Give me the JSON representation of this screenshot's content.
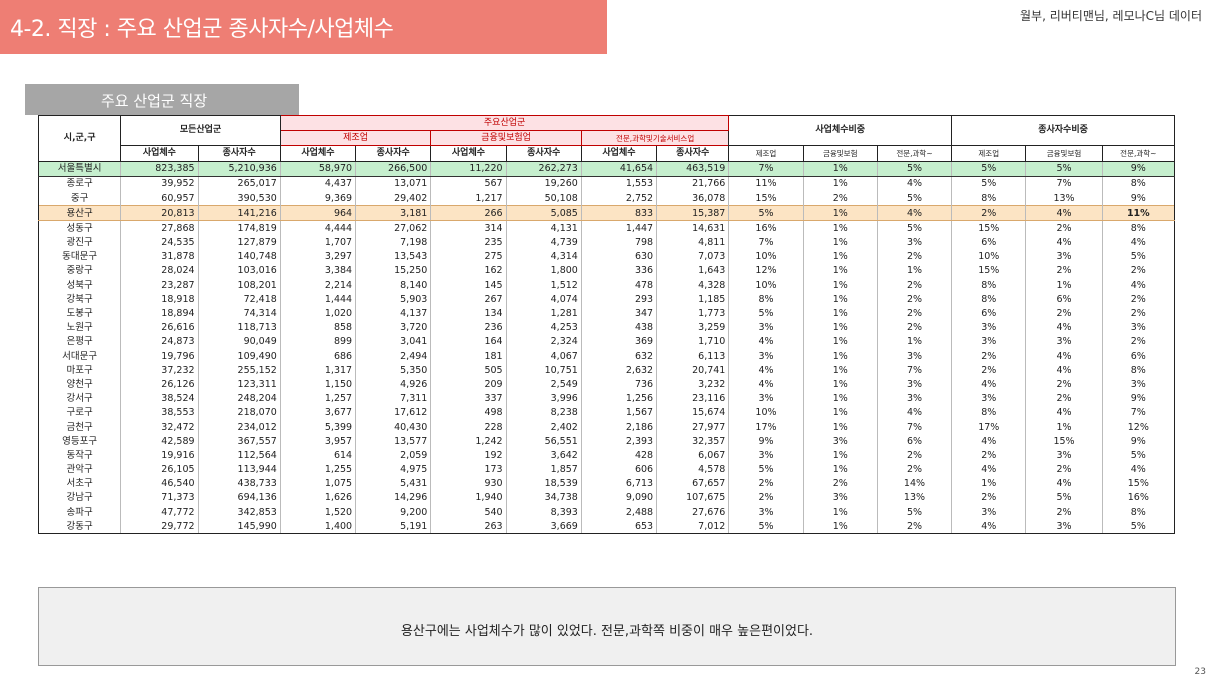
{
  "title": "4-2. 직장 : 주요 산업군 종사자수/사업체수",
  "credit": "월부, 리버티맨님, 레모나C님 데이터",
  "section_tab": "주요 산업군 직장",
  "table": {
    "header": {
      "region": "시,군,구",
      "all_industry": "모든산업군",
      "major_industry": "주요산업군",
      "manufacturing": "제조업",
      "finance": "금융및보험업",
      "professional": "전문,과학및기술서비스업",
      "biz_ratio": "사업체수비중",
      "emp_ratio": "종사자수비중",
      "biz_count": "사업체수",
      "emp_count": "종사자수",
      "r_manu": "제조업",
      "r_fin": "금융및보험",
      "r_prof": "전문,과학~"
    },
    "rows": [
      [
        "서울특별시",
        "823,385",
        "5,210,936",
        "58,970",
        "266,500",
        "11,220",
        "262,273",
        "41,654",
        "463,519",
        "7%",
        "1%",
        "5%",
        "5%",
        "5%",
        "9%"
      ],
      [
        "종로구",
        "39,952",
        "265,017",
        "4,437",
        "13,071",
        "567",
        "19,260",
        "1,553",
        "21,766",
        "11%",
        "1%",
        "4%",
        "5%",
        "7%",
        "8%"
      ],
      [
        "중구",
        "60,957",
        "390,530",
        "9,369",
        "29,402",
        "1,217",
        "50,108",
        "2,752",
        "36,078",
        "15%",
        "2%",
        "5%",
        "8%",
        "13%",
        "9%"
      ],
      [
        "용산구",
        "20,813",
        "141,216",
        "964",
        "3,181",
        "266",
        "5,085",
        "833",
        "15,387",
        "5%",
        "1%",
        "4%",
        "2%",
        "4%",
        "11%"
      ],
      [
        "성동구",
        "27,868",
        "174,819",
        "4,444",
        "27,062",
        "314",
        "4,131",
        "1,447",
        "14,631",
        "16%",
        "1%",
        "5%",
        "15%",
        "2%",
        "8%"
      ],
      [
        "광진구",
        "24,535",
        "127,879",
        "1,707",
        "7,198",
        "235",
        "4,739",
        "798",
        "4,811",
        "7%",
        "1%",
        "3%",
        "6%",
        "4%",
        "4%"
      ],
      [
        "동대문구",
        "31,878",
        "140,748",
        "3,297",
        "13,543",
        "275",
        "4,314",
        "630",
        "7,073",
        "10%",
        "1%",
        "2%",
        "10%",
        "3%",
        "5%"
      ],
      [
        "중랑구",
        "28,024",
        "103,016",
        "3,384",
        "15,250",
        "162",
        "1,800",
        "336",
        "1,643",
        "12%",
        "1%",
        "1%",
        "15%",
        "2%",
        "2%"
      ],
      [
        "성북구",
        "23,287",
        "108,201",
        "2,214",
        "8,140",
        "145",
        "1,512",
        "478",
        "4,328",
        "10%",
        "1%",
        "2%",
        "8%",
        "1%",
        "4%"
      ],
      [
        "강북구",
        "18,918",
        "72,418",
        "1,444",
        "5,903",
        "267",
        "4,074",
        "293",
        "1,185",
        "8%",
        "1%",
        "2%",
        "8%",
        "6%",
        "2%"
      ],
      [
        "도봉구",
        "18,894",
        "74,314",
        "1,020",
        "4,137",
        "134",
        "1,281",
        "347",
        "1,773",
        "5%",
        "1%",
        "2%",
        "6%",
        "2%",
        "2%"
      ],
      [
        "노원구",
        "26,616",
        "118,713",
        "858",
        "3,720",
        "236",
        "4,253",
        "438",
        "3,259",
        "3%",
        "1%",
        "2%",
        "3%",
        "4%",
        "3%"
      ],
      [
        "은평구",
        "24,873",
        "90,049",
        "899",
        "3,041",
        "164",
        "2,324",
        "369",
        "1,710",
        "4%",
        "1%",
        "1%",
        "3%",
        "3%",
        "2%"
      ],
      [
        "서대문구",
        "19,796",
        "109,490",
        "686",
        "2,494",
        "181",
        "4,067",
        "632",
        "6,113",
        "3%",
        "1%",
        "3%",
        "2%",
        "4%",
        "6%"
      ],
      [
        "마포구",
        "37,232",
        "255,152",
        "1,317",
        "5,350",
        "505",
        "10,751",
        "2,632",
        "20,741",
        "4%",
        "1%",
        "7%",
        "2%",
        "4%",
        "8%"
      ],
      [
        "양천구",
        "26,126",
        "123,311",
        "1,150",
        "4,926",
        "209",
        "2,549",
        "736",
        "3,232",
        "4%",
        "1%",
        "3%",
        "4%",
        "2%",
        "3%"
      ],
      [
        "강서구",
        "38,524",
        "248,204",
        "1,257",
        "7,311",
        "337",
        "3,996",
        "1,256",
        "23,116",
        "3%",
        "1%",
        "3%",
        "3%",
        "2%",
        "9%"
      ],
      [
        "구로구",
        "38,553",
        "218,070",
        "3,677",
        "17,612",
        "498",
        "8,238",
        "1,567",
        "15,674",
        "10%",
        "1%",
        "4%",
        "8%",
        "4%",
        "7%"
      ],
      [
        "금천구",
        "32,472",
        "234,012",
        "5,399",
        "40,430",
        "228",
        "2,402",
        "2,186",
        "27,977",
        "17%",
        "1%",
        "7%",
        "17%",
        "1%",
        "12%"
      ],
      [
        "영등포구",
        "42,589",
        "367,557",
        "3,957",
        "13,577",
        "1,242",
        "56,551",
        "2,393",
        "32,357",
        "9%",
        "3%",
        "6%",
        "4%",
        "15%",
        "9%"
      ],
      [
        "동작구",
        "19,916",
        "112,564",
        "614",
        "2,059",
        "192",
        "3,642",
        "428",
        "6,067",
        "3%",
        "1%",
        "2%",
        "2%",
        "3%",
        "5%"
      ],
      [
        "관악구",
        "26,105",
        "113,944",
        "1,255",
        "4,975",
        "173",
        "1,857",
        "606",
        "4,578",
        "5%",
        "1%",
        "2%",
        "4%",
        "2%",
        "4%"
      ],
      [
        "서초구",
        "46,540",
        "438,733",
        "1,075",
        "5,431",
        "930",
        "18,539",
        "6,713",
        "67,657",
        "2%",
        "2%",
        "14%",
        "1%",
        "4%",
        "15%"
      ],
      [
        "강남구",
        "71,373",
        "694,136",
        "1,626",
        "14,296",
        "1,940",
        "34,738",
        "9,090",
        "107,675",
        "2%",
        "3%",
        "13%",
        "2%",
        "5%",
        "16%"
      ],
      [
        "송파구",
        "47,772",
        "342,853",
        "1,520",
        "9,200",
        "540",
        "8,393",
        "2,488",
        "27,676",
        "3%",
        "1%",
        "5%",
        "3%",
        "2%",
        "8%"
      ],
      [
        "강동구",
        "29,772",
        "145,990",
        "1,400",
        "5,191",
        "263",
        "3,669",
        "653",
        "7,012",
        "5%",
        "1%",
        "2%",
        "4%",
        "3%",
        "5%"
      ]
    ]
  },
  "comment": "용산구에는 사업체수가 많이 있었다. 전문,과학쪽 비중이 매우 높은편이었다.",
  "page_number": "23"
}
